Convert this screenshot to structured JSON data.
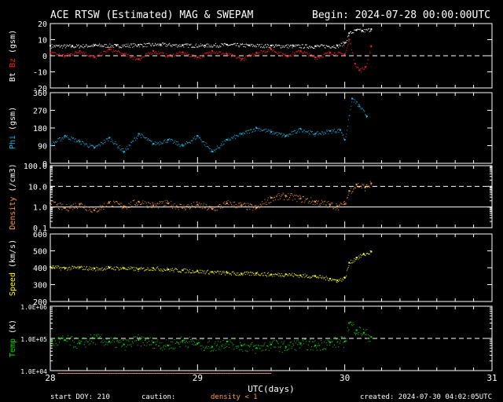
{
  "header": {
    "title": "ACE RTSW (Estimated) MAG & SWEPAM",
    "begin": "Begin: 2024-07-28 00:00:00UTC"
  },
  "footer": {
    "start_doy": "start DOY: 210",
    "caution": "caution:",
    "density_note": "density < 1",
    "created": "created: 2024-07-30 04:02:05UTC"
  },
  "colors": {
    "bt": "#ffffff",
    "bz": "#ff2020",
    "phi": "#19b3e6",
    "density": "#ff9933",
    "speed": "#ffff00",
    "temp": "#00e000",
    "axis": "#ffffff",
    "dash": "#ffffff"
  },
  "chart_data": {
    "type": "scatter",
    "xlabel": "UTC(days)",
    "xlim": [
      28,
      31
    ],
    "xticks": [
      "28",
      "29",
      "30",
      "31"
    ],
    "panels": [
      {
        "id": "mag",
        "ylabel_parts": [
          {
            "text": "Bt",
            "color": "#ffffff"
          },
          {
            "text": "Bz",
            "color": "#ff2020"
          },
          {
            "text": "(gsm)",
            "color": "#ffffff"
          }
        ],
        "ylim": [
          -20,
          20
        ],
        "yticks": [
          "-20",
          "-10",
          "0",
          "10",
          "20"
        ],
        "dashed_at": 0,
        "series": [
          {
            "name": "Bt",
            "color": "#ffffff",
            "points": [
              [
                28.0,
                6.2
              ],
              [
                28.15,
                6.0
              ],
              [
                28.3,
                6.5
              ],
              [
                28.45,
                6.3
              ],
              [
                28.6,
                6.8
              ],
              [
                28.75,
                7.0
              ],
              [
                28.9,
                6.6
              ],
              [
                29.05,
                6.4
              ],
              [
                29.2,
                6.9
              ],
              [
                29.35,
                6.5
              ],
              [
                29.5,
                6.3
              ],
              [
                29.65,
                6.1
              ],
              [
                29.8,
                6.0
              ],
              [
                29.95,
                6.2
              ],
              [
                30.0,
                8
              ],
              [
                30.03,
                14
              ],
              [
                30.08,
                16
              ],
              [
                30.12,
                15.5
              ],
              [
                30.18,
                16.5
              ]
            ]
          },
          {
            "name": "Bz",
            "color": "#ff2020",
            "points": [
              [
                28.0,
                2
              ],
              [
                28.1,
                0
              ],
              [
                28.2,
                3
              ],
              [
                28.3,
                -1
              ],
              [
                28.4,
                4
              ],
              [
                28.5,
                1
              ],
              [
                28.6,
                -2
              ],
              [
                28.7,
                3
              ],
              [
                28.8,
                0
              ],
              [
                28.9,
                2
              ],
              [
                29.0,
                -1
              ],
              [
                29.1,
                3
              ],
              [
                29.2,
                1
              ],
              [
                29.3,
                -2
              ],
              [
                29.4,
                2
              ],
              [
                29.5,
                4
              ],
              [
                29.6,
                0
              ],
              [
                29.7,
                3
              ],
              [
                29.8,
                -1
              ],
              [
                29.9,
                2
              ],
              [
                30.0,
                1
              ],
              [
                30.03,
                10
              ],
              [
                30.07,
                -5
              ],
              [
                30.1,
                -9
              ],
              [
                30.14,
                -7
              ],
              [
                30.18,
                6
              ]
            ]
          }
        ]
      },
      {
        "id": "phi",
        "ylabel_parts": [
          {
            "text": "Phi",
            "color": "#19b3e6"
          },
          {
            "text": "(gsm)",
            "color": "#ffffff"
          }
        ],
        "ylim": [
          0,
          360
        ],
        "yticks": [
          "0",
          "90",
          "180",
          "270",
          "360"
        ],
        "dashed_at": null,
        "series": [
          {
            "name": "Phi",
            "color": "#19b3e6",
            "points": [
              [
                28.0,
                95
              ],
              [
                28.1,
                140
              ],
              [
                28.2,
                110
              ],
              [
                28.3,
                80
              ],
              [
                28.4,
                130
              ],
              [
                28.5,
                60
              ],
              [
                28.6,
                150
              ],
              [
                28.7,
                100
              ],
              [
                28.8,
                120
              ],
              [
                28.9,
                90
              ],
              [
                29.0,
                140
              ],
              [
                29.1,
                60
              ],
              [
                29.2,
                120
              ],
              [
                29.3,
                150
              ],
              [
                29.4,
                180
              ],
              [
                29.5,
                160
              ],
              [
                29.6,
                140
              ],
              [
                29.7,
                175
              ],
              [
                29.8,
                150
              ],
              [
                29.9,
                165
              ],
              [
                29.97,
                170
              ],
              [
                30.0,
                120
              ],
              [
                30.05,
                330
              ],
              [
                30.1,
                290
              ],
              [
                30.15,
                240
              ]
            ]
          }
        ]
      },
      {
        "id": "density",
        "ylabel_parts": [
          {
            "text": "Density",
            "color": "#ff9933"
          },
          {
            "text": "(/cm3)",
            "color": "#ffffff"
          }
        ],
        "scale": "log",
        "ylim": [
          0.1,
          100
        ],
        "yticks": [
          "0.1",
          "1.0",
          "10.0",
          "100.0"
        ],
        "dashed_at": 10,
        "solid_at": 1,
        "series": [
          {
            "name": "Density",
            "color": "#ff9933",
            "points": [
              [
                28.0,
                1.5
              ],
              [
                28.1,
                0.9
              ],
              [
                28.2,
                1.4
              ],
              [
                28.3,
                0.7
              ],
              [
                28.4,
                1.6
              ],
              [
                28.5,
                1.1
              ],
              [
                28.6,
                1.8
              ],
              [
                28.7,
                1.2
              ],
              [
                28.8,
                1.5
              ],
              [
                28.9,
                1.0
              ],
              [
                29.0,
                1.3
              ],
              [
                29.1,
                0.8
              ],
              [
                29.2,
                1.5
              ],
              [
                29.3,
                1.2
              ],
              [
                29.4,
                0.9
              ],
              [
                29.5,
                2.8
              ],
              [
                29.6,
                3.5
              ],
              [
                29.7,
                2.6
              ],
              [
                29.8,
                1.8
              ],
              [
                29.9,
                1.3
              ],
              [
                29.95,
                1.1
              ],
              [
                30.0,
                1.4
              ],
              [
                30.03,
                6
              ],
              [
                30.08,
                12
              ],
              [
                30.14,
                9
              ],
              [
                30.18,
                14
              ]
            ]
          }
        ]
      },
      {
        "id": "speed",
        "ylabel_parts": [
          {
            "text": "Speed",
            "color": "#ffff00"
          },
          {
            "text": "(km/s)",
            "color": "#ffffff"
          }
        ],
        "ylim": [
          200,
          600
        ],
        "yticks": [
          "200",
          "300",
          "400",
          "500",
          "600"
        ],
        "dashed_at": null,
        "series": [
          {
            "name": "Speed",
            "color": "#ffff00",
            "points": [
              [
                28.0,
                405
              ],
              [
                28.1,
                398
              ],
              [
                28.2,
                402
              ],
              [
                28.3,
                395
              ],
              [
                28.4,
                400
              ],
              [
                28.5,
                398
              ],
              [
                28.6,
                392
              ],
              [
                28.7,
                398
              ],
              [
                28.8,
                390
              ],
              [
                28.9,
                385
              ],
              [
                29.0,
                380
              ],
              [
                29.1,
                375
              ],
              [
                29.2,
                370
              ],
              [
                29.3,
                365
              ],
              [
                29.4,
                368
              ],
              [
                29.5,
                360
              ],
              [
                29.6,
                362
              ],
              [
                29.7,
                355
              ],
              [
                29.8,
                350
              ],
              [
                29.9,
                335
              ],
              [
                29.95,
                325
              ],
              [
                30.0,
                340
              ],
              [
                30.03,
                430
              ],
              [
                30.08,
                460
              ],
              [
                30.13,
                480
              ],
              [
                30.18,
                495
              ]
            ]
          }
        ]
      },
      {
        "id": "temp",
        "ylabel_parts": [
          {
            "text": "Temp",
            "color": "#00e000"
          },
          {
            "text": "(K)",
            "color": "#ffffff"
          }
        ],
        "scale": "log",
        "ylim": [
          10000,
          1000000
        ],
        "yticks": [
          "1.0E+04",
          "1.0E+05",
          "1.0E+06"
        ],
        "dashed_at": 100000,
        "series": [
          {
            "name": "Temp",
            "color": "#00e000",
            "points": [
              [
                28.0,
                75000
              ],
              [
                28.1,
                90000
              ],
              [
                28.2,
                70000
              ],
              [
                28.3,
                100000
              ],
              [
                28.4,
                80000
              ],
              [
                28.5,
                65000
              ],
              [
                28.6,
                90000
              ],
              [
                28.7,
                75000
              ],
              [
                28.8,
                60000
              ],
              [
                28.9,
                85000
              ],
              [
                29.0,
                70000
              ],
              [
                29.1,
                55000
              ],
              [
                29.2,
                80000
              ],
              [
                29.3,
                60000
              ],
              [
                29.4,
                50000
              ],
              [
                29.5,
                65000
              ],
              [
                29.6,
                55000
              ],
              [
                29.7,
                70000
              ],
              [
                29.8,
                60000
              ],
              [
                29.9,
                75000
              ],
              [
                30.0,
                80000
              ],
              [
                30.03,
                300000
              ],
              [
                30.08,
                180000
              ],
              [
                30.13,
                150000
              ],
              [
                30.18,
                110000
              ]
            ]
          }
        ]
      }
    ]
  }
}
